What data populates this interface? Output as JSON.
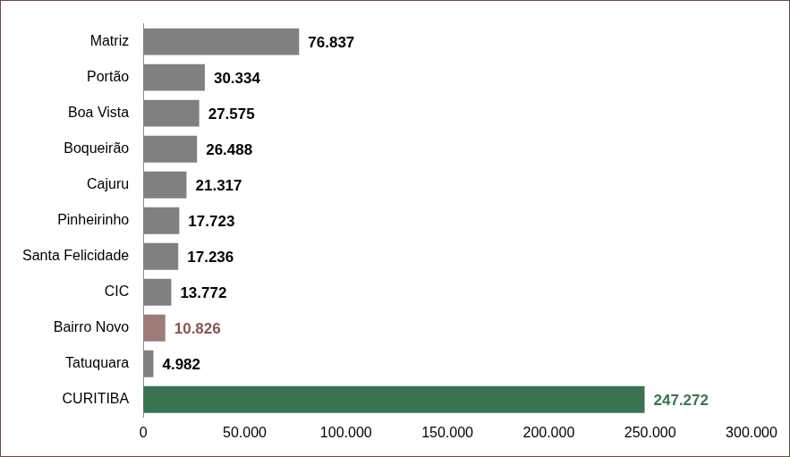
{
  "chart_data": {
    "type": "bar",
    "orientation": "horizontal",
    "categories": [
      "Matriz",
      "Portão",
      "Boa Vista",
      "Boqueirão",
      "Cajuru",
      "Pinheirinho",
      "Santa Felicidade",
      "CIC",
      "Bairro Novo",
      "Tatuquara",
      "CURITIBA"
    ],
    "values": [
      76837,
      30334,
      27575,
      26488,
      21317,
      17723,
      17236,
      13772,
      10826,
      4982,
      247272
    ],
    "value_labels": [
      "76.837",
      "30.334",
      "27.575",
      "26.488",
      "21.317",
      "17.723",
      "17.236",
      "13.772",
      "10.826",
      "4.982",
      "247.272"
    ],
    "colors": [
      "#808080",
      "#808080",
      "#808080",
      "#808080",
      "#808080",
      "#808080",
      "#808080",
      "#808080",
      "#9e7b76",
      "#808080",
      "#3a7351"
    ],
    "xlim": [
      0,
      300000
    ],
    "xticks": [
      0,
      {
        "value": 50000,
        "label": "50.000"
      },
      {
        "value": 100000,
        "label": "100.000"
      },
      {
        "value": 150000,
        "label": "150.000"
      },
      {
        "value": 200000,
        "label": "200.000"
      },
      {
        "value": 250000,
        "label": "250.000"
      },
      {
        "value": 300000,
        "label": "300.000"
      }
    ],
    "grid": false,
    "data_labels": true
  }
}
